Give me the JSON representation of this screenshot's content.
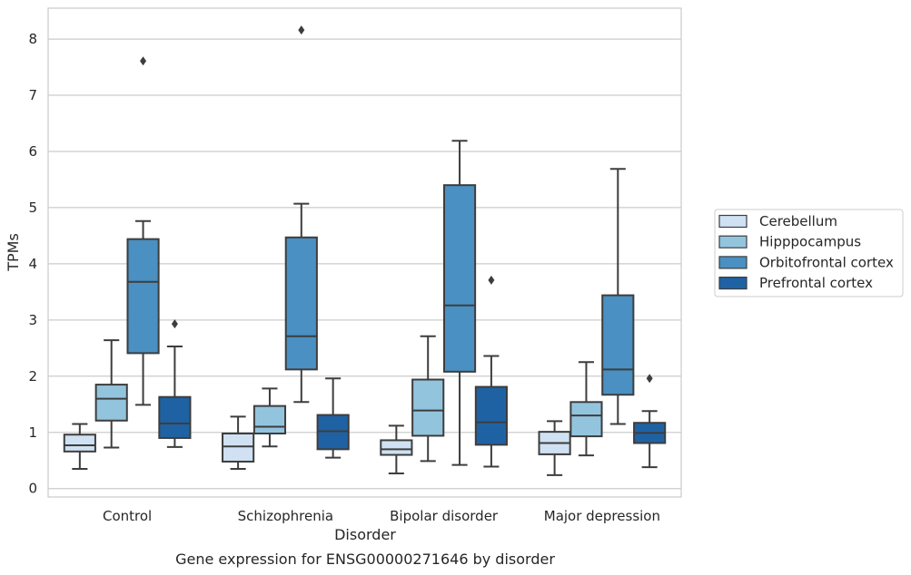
{
  "chart_data": {
    "type": "box",
    "title": "",
    "caption": "Gene expression for ENSG00000271646 by disorder",
    "xlabel": "Disorder",
    "ylabel": "TPMs",
    "ylim": [
      -0.15,
      8.55
    ],
    "yticks": [
      0,
      1,
      2,
      3,
      4,
      5,
      6,
      7,
      8
    ],
    "grid": "horizontal",
    "legend_position": "right",
    "categories": [
      "Control",
      "Schizophrenia",
      "Bipolar disorder",
      "Major depression"
    ],
    "series": [
      {
        "name": "Cerebellum",
        "color": "#cfe1f2",
        "boxes": [
          {
            "whislo": 0.35,
            "q1": 0.66,
            "med": 0.77,
            "q3": 0.96,
            "whishi": 1.15,
            "fliers": []
          },
          {
            "whislo": 0.35,
            "q1": 0.48,
            "med": 0.75,
            "q3": 0.98,
            "whishi": 1.28,
            "fliers": []
          },
          {
            "whislo": 0.27,
            "q1": 0.6,
            "med": 0.7,
            "q3": 0.86,
            "whishi": 1.12,
            "fliers": []
          },
          {
            "whislo": 0.24,
            "q1": 0.61,
            "med": 0.81,
            "q3": 1.01,
            "whishi": 1.2,
            "fliers": []
          }
        ]
      },
      {
        "name": "Hipppocampus",
        "color": "#93c4de",
        "boxes": [
          {
            "whislo": 0.73,
            "q1": 1.21,
            "med": 1.6,
            "q3": 1.85,
            "whishi": 2.64,
            "fliers": []
          },
          {
            "whislo": 0.75,
            "q1": 0.98,
            "med": 1.1,
            "q3": 1.47,
            "whishi": 1.78,
            "fliers": []
          },
          {
            "whislo": 0.49,
            "q1": 0.94,
            "med": 1.39,
            "q3": 1.94,
            "whishi": 2.71,
            "fliers": []
          },
          {
            "whislo": 0.59,
            "q1": 0.93,
            "med": 1.3,
            "q3": 1.54,
            "whishi": 2.25,
            "fliers": []
          }
        ]
      },
      {
        "name": "Orbitofrontal cortex",
        "color": "#4a90c2",
        "boxes": [
          {
            "whislo": 1.49,
            "q1": 2.41,
            "med": 3.68,
            "q3": 4.44,
            "whishi": 4.76,
            "fliers": [
              7.61
            ]
          },
          {
            "whislo": 1.54,
            "q1": 2.12,
            "med": 2.71,
            "q3": 4.47,
            "whishi": 5.07,
            "fliers": [
              8.16
            ]
          },
          {
            "whislo": 0.42,
            "q1": 2.08,
            "med": 3.26,
            "q3": 5.4,
            "whishi": 6.19,
            "fliers": []
          },
          {
            "whislo": 1.15,
            "q1": 1.67,
            "med": 2.12,
            "q3": 3.44,
            "whishi": 5.69,
            "fliers": []
          }
        ]
      },
      {
        "name": "Prefrontal cortex",
        "color": "#1f62a4",
        "boxes": [
          {
            "whislo": 0.74,
            "q1": 0.9,
            "med": 1.16,
            "q3": 1.63,
            "whishi": 2.53,
            "fliers": [
              2.93
            ]
          },
          {
            "whislo": 0.55,
            "q1": 0.7,
            "med": 1.02,
            "q3": 1.31,
            "whishi": 1.96,
            "fliers": []
          },
          {
            "whislo": 0.39,
            "q1": 0.78,
            "med": 1.18,
            "q3": 1.81,
            "whishi": 2.36,
            "fliers": [
              3.71
            ]
          },
          {
            "whislo": 0.38,
            "q1": 0.81,
            "med": 0.99,
            "q3": 1.17,
            "whishi": 1.38,
            "fliers": [
              1.96
            ]
          }
        ]
      }
    ]
  }
}
